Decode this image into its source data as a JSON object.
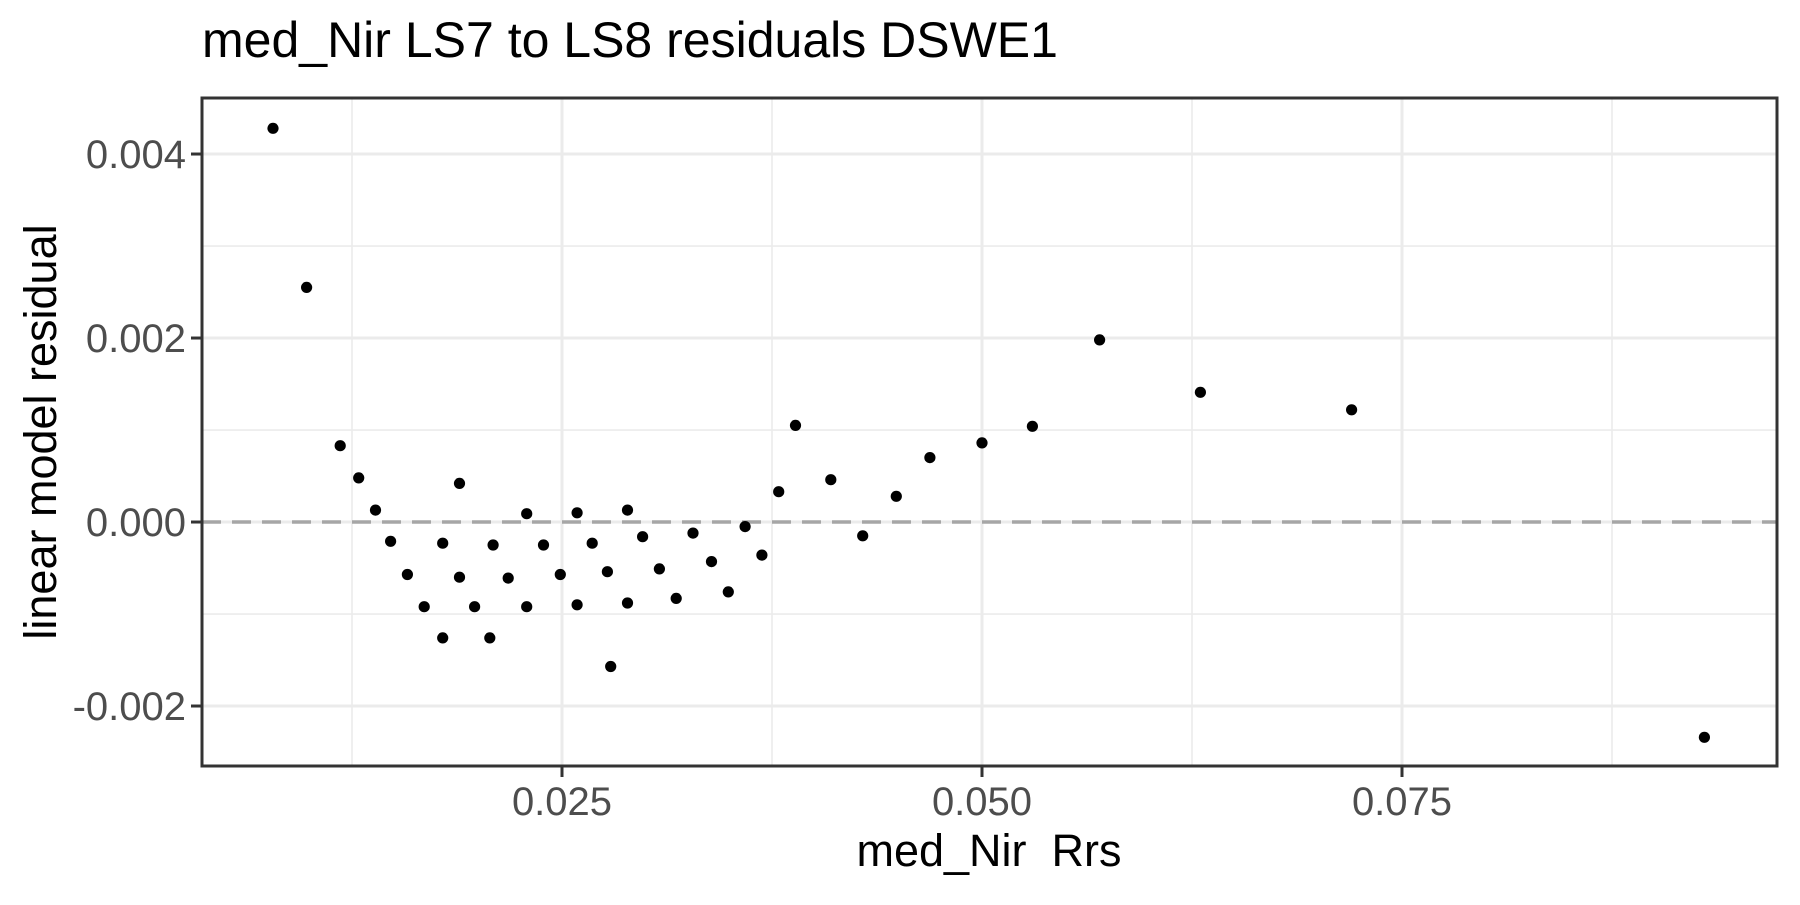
{
  "chart_data": {
    "type": "scatter",
    "title": "med_Nir LS7 to LS8 residuals DSWE1",
    "xlabel": "med_Nir  Rrs",
    "ylabel": "linear model residual",
    "xlim": [
      0.003571,
      0.097321
    ],
    "ylim": [
      -0.002652,
      0.004609
    ],
    "x_major_ticks": [
      0.025,
      0.05,
      0.075
    ],
    "x_tick_labels": [
      "0.025",
      "0.050",
      "0.075"
    ],
    "x_minor_ticks": [
      0.0125,
      0.0375,
      0.0625,
      0.0875
    ],
    "y_major_ticks": [
      -0.002,
      0.0,
      0.002,
      0.004
    ],
    "y_tick_labels": [
      "-0.002",
      "0.000",
      "0.002",
      "0.004"
    ],
    "y_minor_ticks": [
      -0.001,
      0.001,
      0.003
    ],
    "grid": true,
    "legend": false,
    "reference_line": {
      "y": 0,
      "style": "dashed",
      "color": "#a6a6a6"
    },
    "marker": {
      "shape": "circle",
      "radius_px": 5.6,
      "color": "#000000"
    },
    "points": [
      [
        0.0078,
        0.00428
      ],
      [
        0.0098,
        0.00255
      ],
      [
        0.0118,
        0.00083
      ],
      [
        0.0129,
        0.00048
      ],
      [
        0.0139,
        0.00013
      ],
      [
        0.0148,
        -0.00021
      ],
      [
        0.0158,
        -0.00057
      ],
      [
        0.0168,
        -0.00092
      ],
      [
        0.0179,
        -0.00126
      ],
      [
        0.0179,
        -0.00023
      ],
      [
        0.0189,
        0.00042
      ],
      [
        0.0189,
        -0.0006
      ],
      [
        0.0198,
        -0.00092
      ],
      [
        0.0207,
        -0.00126
      ],
      [
        0.0209,
        -0.00025
      ],
      [
        0.0218,
        -0.00061
      ],
      [
        0.0229,
        9e-05
      ],
      [
        0.0229,
        -0.00092
      ],
      [
        0.0239,
        -0.00025
      ],
      [
        0.0249,
        -0.00057
      ],
      [
        0.0259,
        0.0001
      ],
      [
        0.0259,
        -0.0009
      ],
      [
        0.0268,
        -0.00023
      ],
      [
        0.0277,
        -0.00054
      ],
      [
        0.0279,
        -0.00157
      ],
      [
        0.0289,
        0.00013
      ],
      [
        0.0289,
        -0.00088
      ],
      [
        0.0298,
        -0.00016
      ],
      [
        0.0308,
        -0.00051
      ],
      [
        0.0318,
        -0.00083
      ],
      [
        0.0328,
        -0.00012
      ],
      [
        0.0339,
        -0.00043
      ],
      [
        0.0349,
        -0.00076
      ],
      [
        0.0359,
        -5e-05
      ],
      [
        0.0369,
        -0.00036
      ],
      [
        0.0379,
        0.00033
      ],
      [
        0.0389,
        0.00105
      ],
      [
        0.041,
        0.00046
      ],
      [
        0.0429,
        -0.00015
      ],
      [
        0.0449,
        0.00028
      ],
      [
        0.0469,
        0.0007
      ],
      [
        0.05,
        0.00086
      ],
      [
        0.053,
        0.00104
      ],
      [
        0.057,
        0.00198
      ],
      [
        0.063,
        0.00141
      ],
      [
        0.072,
        0.00122
      ],
      [
        0.093,
        -0.00234
      ]
    ]
  },
  "colors": {
    "background": "#ffffff",
    "panel_border": "#333333",
    "grid_major": "#ebebeb",
    "grid_minor": "#ebebeb",
    "tick_mark": "#333333",
    "tick_label": "#4d4d4d",
    "point": "#000000",
    "zero_line": "#a6a6a6"
  }
}
